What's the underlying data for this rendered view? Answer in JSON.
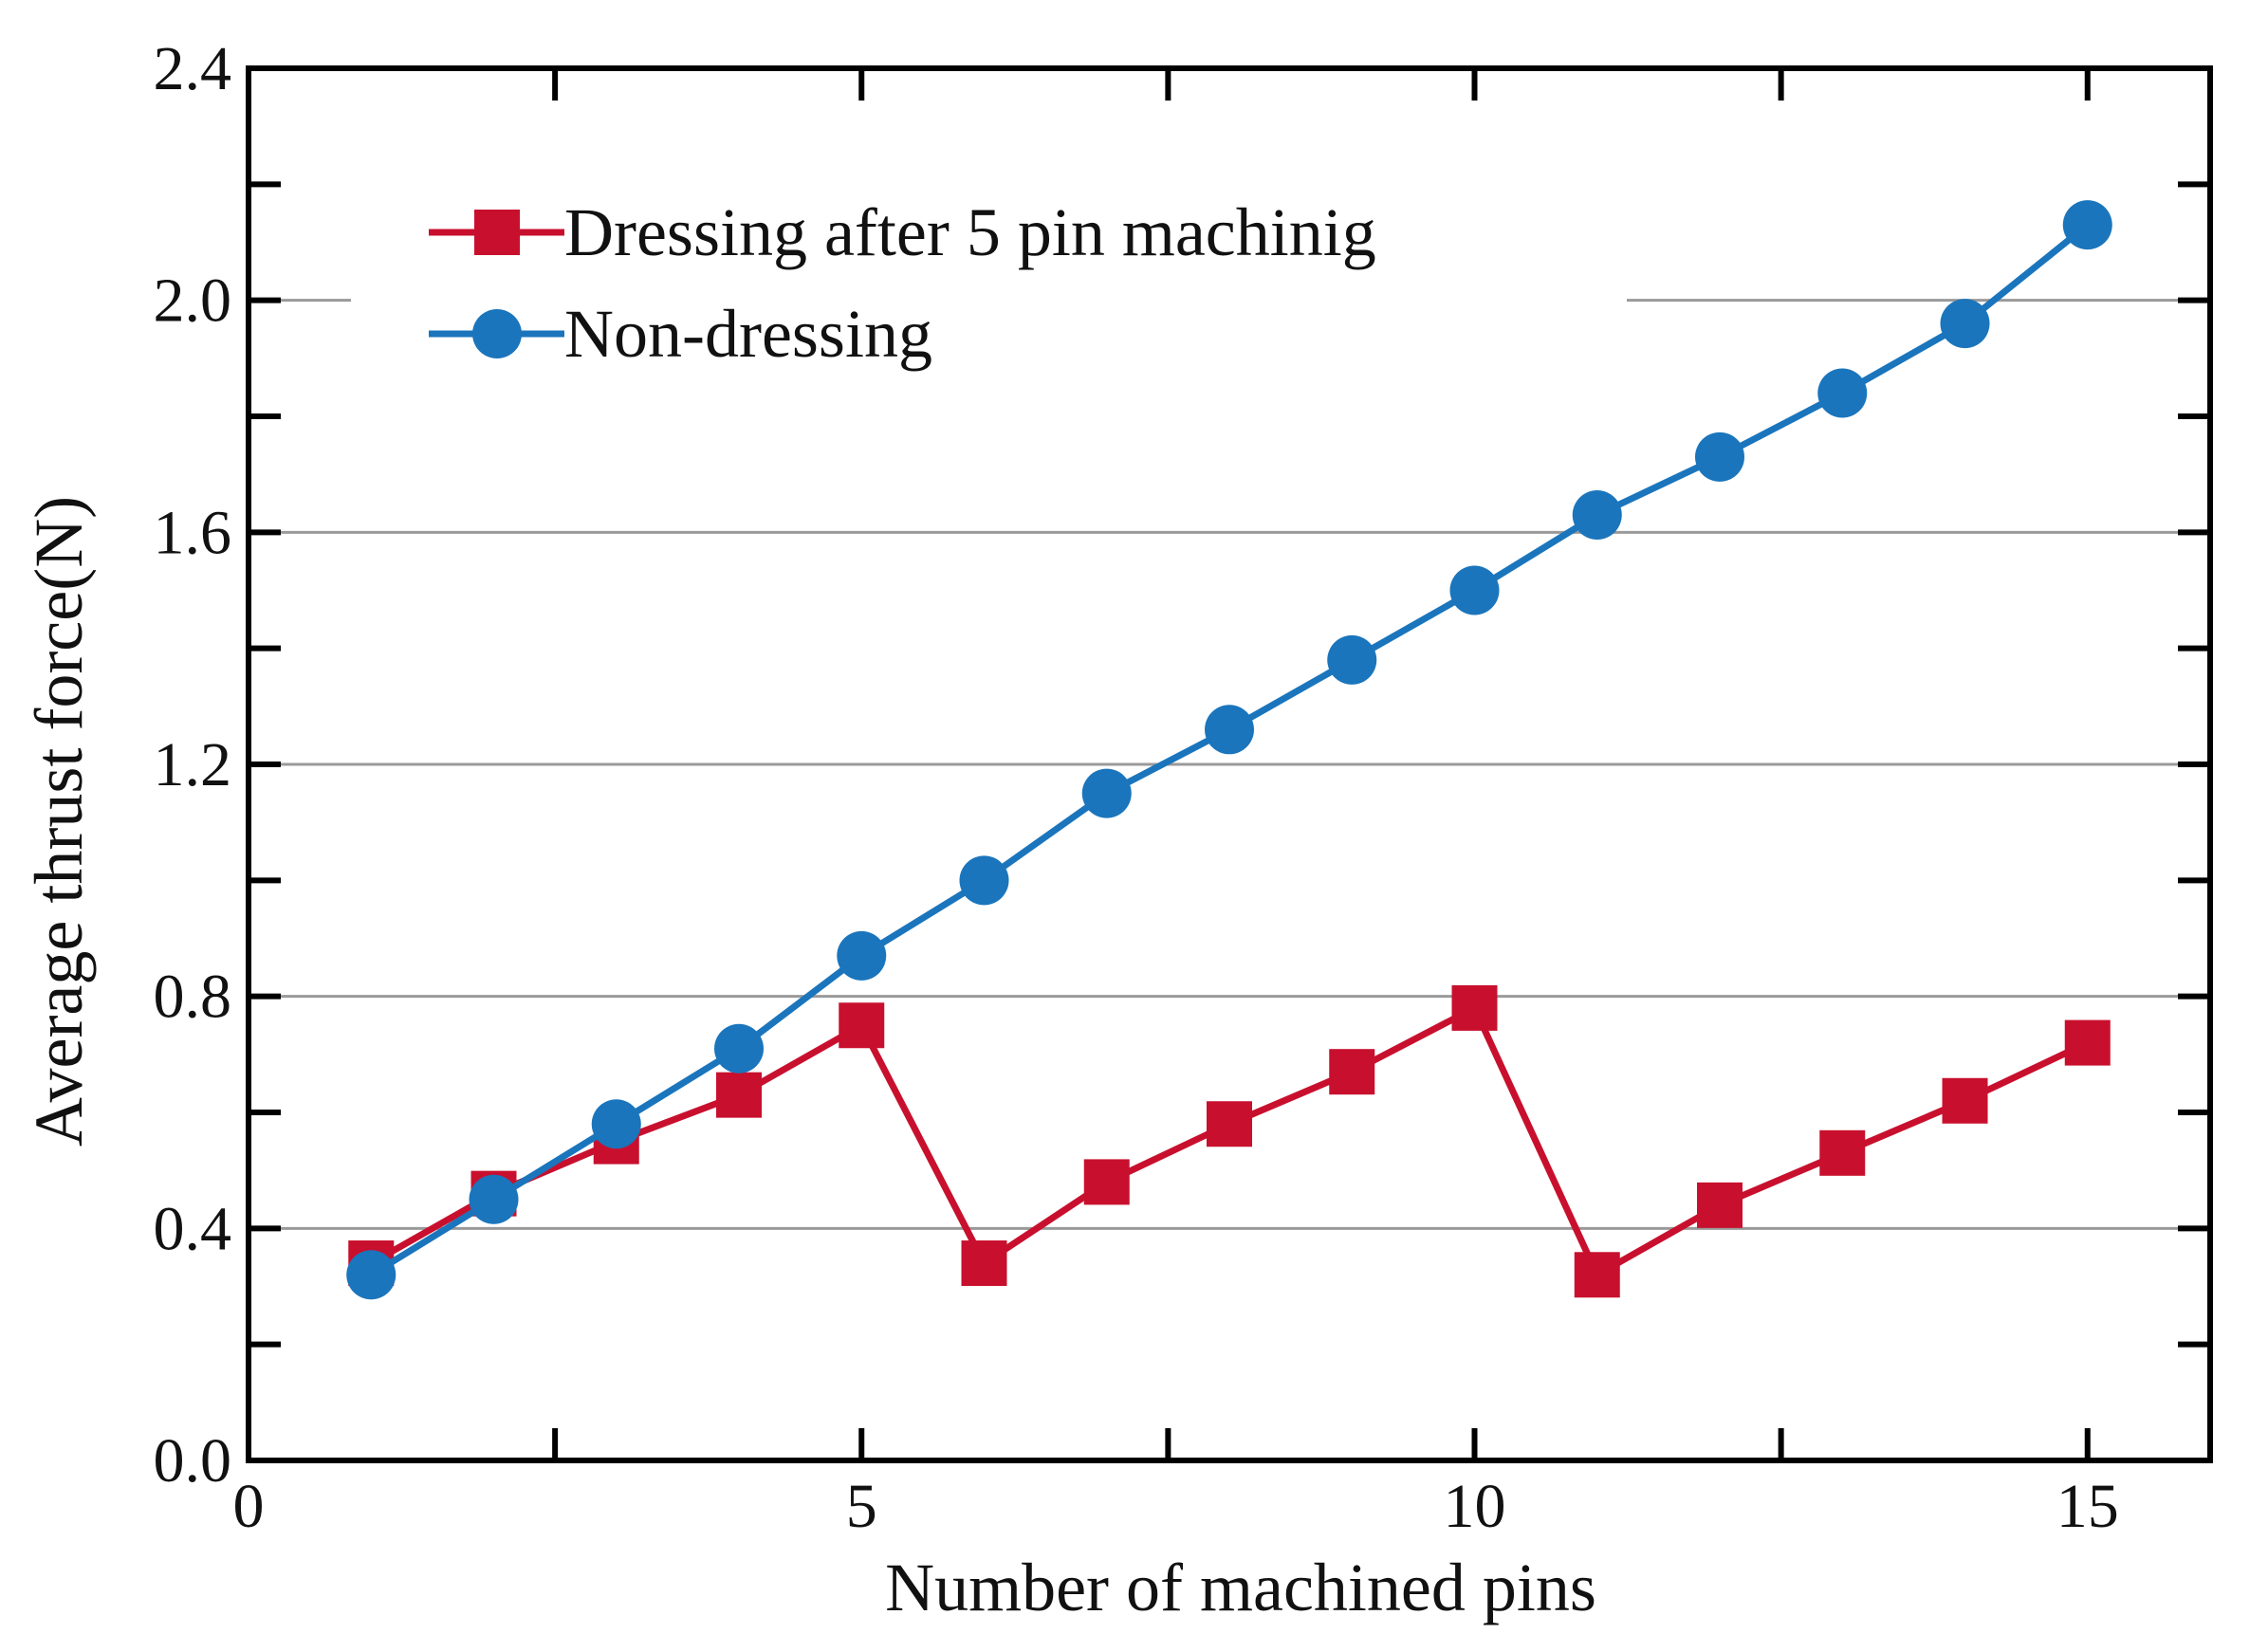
{
  "chart_data": {
    "type": "line",
    "title": "",
    "xlabel": "Number of machined pins",
    "ylabel": "Average thrust force(N)",
    "xlim": [
      0,
      16
    ],
    "ylim": [
      0,
      2.4
    ],
    "xticks": [
      0,
      5,
      10,
      15
    ],
    "xtick_labels": [
      "0",
      "5",
      "10",
      "15"
    ],
    "yticks": [
      0,
      0.4,
      0.8,
      1.2,
      1.6,
      2.0,
      2.4
    ],
    "ytick_labels": [
      "0.0",
      "0.4",
      "0.8",
      "1.2",
      "1.6",
      "2.0",
      "2.4"
    ],
    "grid": "horizontal",
    "legend_position": "top-left",
    "x": [
      1,
      2,
      3,
      4,
      5,
      6,
      7,
      8,
      9,
      10,
      11,
      12,
      13,
      14,
      15
    ],
    "series": [
      {
        "name": "Dressing after 5 pin machinig",
        "color": "#c8102e",
        "marker": "square",
        "values": [
          0.34,
          0.46,
          0.55,
          0.63,
          0.75,
          0.34,
          0.48,
          0.58,
          0.67,
          0.78,
          0.32,
          0.44,
          0.53,
          0.62,
          0.72
        ]
      },
      {
        "name": "Non-dressing",
        "color": "#1a75bc",
        "marker": "circle",
        "values": [
          0.32,
          0.45,
          0.58,
          0.71,
          0.87,
          1.0,
          1.15,
          1.26,
          1.38,
          1.5,
          1.63,
          1.73,
          1.84,
          1.96,
          2.13
        ]
      }
    ]
  }
}
